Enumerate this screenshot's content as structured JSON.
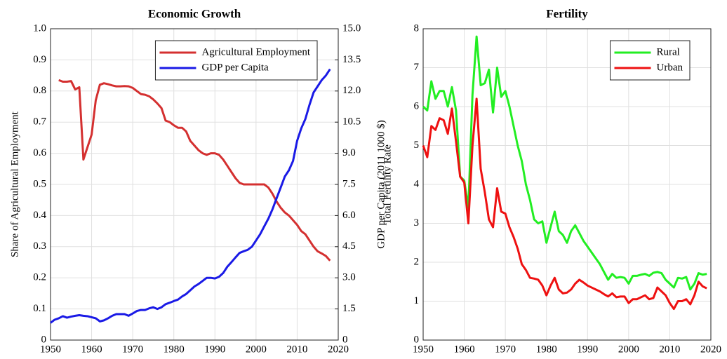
{
  "chart_data": [
    {
      "type": "line",
      "title": "Economic Growth",
      "ylabel": "Share of Agricultural Employment",
      "y2label": "GDP per Capita (2011 1000 $)",
      "x": [
        1950,
        1951,
        1952,
        1953,
        1954,
        1955,
        1956,
        1957,
        1958,
        1959,
        1960,
        1961,
        1962,
        1963,
        1964,
        1965,
        1966,
        1967,
        1968,
        1969,
        1970,
        1971,
        1972,
        1973,
        1974,
        1975,
        1976,
        1977,
        1978,
        1979,
        1980,
        1981,
        1982,
        1983,
        1984,
        1985,
        1986,
        1987,
        1988,
        1989,
        1990,
        1991,
        1992,
        1993,
        1994,
        1995,
        1996,
        1997,
        1998,
        1999,
        2000,
        2001,
        2002,
        2003,
        2004,
        2005,
        2006,
        2007,
        2008,
        2009,
        2010,
        2011,
        2012,
        2013,
        2014,
        2015,
        2016,
        2017,
        2018
      ],
      "xlim": [
        1950,
        2020
      ],
      "xticks": [
        1950,
        1960,
        1970,
        1980,
        1990,
        2000,
        2010,
        2020
      ],
      "ylim": [
        0,
        1
      ],
      "yticks": [
        0,
        0.1,
        0.2,
        0.3,
        0.4,
        0.5,
        0.6,
        0.7,
        0.8,
        0.9,
        {
          "value": 1,
          "label": "1.0"
        }
      ],
      "y2lim": [
        0,
        15
      ],
      "y2ticks": [
        0,
        1.5,
        {
          "value": 3,
          "label": "3.0"
        },
        4.5,
        {
          "value": 6,
          "label": "6.0"
        },
        7.5,
        {
          "value": 9,
          "label": "9.0"
        },
        10.5,
        {
          "value": 12,
          "label": "12.0"
        },
        13.5,
        {
          "value": 15,
          "label": "15.0"
        }
      ],
      "grid": true,
      "legend": "northeast",
      "series": [
        {
          "name": "Agricultural Employment",
          "color": "#d43030",
          "values": [
            null,
            null,
            0.835,
            0.83,
            0.83,
            0.832,
            0.805,
            0.812,
            0.58,
            0.62,
            0.66,
            0.77,
            0.82,
            0.825,
            0.822,
            0.818,
            0.815,
            0.815,
            0.816,
            0.815,
            0.81,
            0.8,
            0.79,
            0.788,
            0.783,
            0.773,
            0.76,
            0.745,
            0.705,
            0.7,
            0.69,
            0.682,
            0.682,
            0.67,
            0.64,
            0.625,
            0.61,
            0.6,
            0.595,
            0.6,
            0.6,
            0.595,
            0.58,
            0.56,
            0.54,
            0.52,
            0.505,
            0.5,
            0.5,
            0.5,
            0.5,
            0.5,
            0.5,
            0.49,
            0.47,
            0.445,
            0.425,
            0.41,
            0.4,
            0.385,
            0.37,
            0.35,
            0.34,
            0.32,
            0.3,
            0.285,
            0.278,
            0.27,
            0.255
          ]
        },
        {
          "name": "GDP per Capita",
          "color": "#1a1ae6",
          "axis": "y2",
          "values": [
            0.83,
            0.98,
            1.05,
            1.15,
            1.08,
            1.13,
            1.17,
            1.2,
            1.17,
            1.15,
            1.1,
            1.05,
            0.9,
            0.95,
            1.05,
            1.17,
            1.25,
            1.25,
            1.25,
            1.17,
            1.28,
            1.4,
            1.45,
            1.45,
            1.53,
            1.58,
            1.5,
            1.58,
            1.73,
            1.8,
            1.88,
            1.95,
            2.1,
            2.22,
            2.4,
            2.58,
            2.7,
            2.85,
            3.0,
            3.0,
            2.97,
            3.05,
            3.23,
            3.53,
            3.75,
            3.98,
            4.2,
            4.28,
            4.35,
            4.5,
            4.8,
            5.1,
            5.48,
            5.85,
            6.3,
            6.83,
            7.35,
            7.88,
            8.18,
            8.63,
            9.6,
            10.2,
            10.65,
            11.33,
            11.93,
            12.23,
            12.53,
            12.75,
            13.05
          ]
        }
      ]
    },
    {
      "type": "line",
      "title": "Fertility",
      "ylabel": "Total Fertility Rate",
      "x": [
        1950,
        1951,
        1952,
        1953,
        1954,
        1955,
        1956,
        1957,
        1958,
        1959,
        1960,
        1961,
        1962,
        1963,
        1964,
        1965,
        1966,
        1967,
        1968,
        1969,
        1970,
        1971,
        1972,
        1973,
        1974,
        1975,
        1976,
        1977,
        1978,
        1979,
        1980,
        1981,
        1982,
        1983,
        1984,
        1985,
        1986,
        1987,
        1988,
        1989,
        1990,
        1991,
        1992,
        1993,
        1994,
        1995,
        1996,
        1997,
        1998,
        1999,
        2000,
        2001,
        2002,
        2003,
        2004,
        2005,
        2006,
        2007,
        2008,
        2009,
        2010,
        2011,
        2012,
        2013,
        2014,
        2015,
        2016,
        2017,
        2018,
        2019
      ],
      "xlim": [
        1950,
        2020
      ],
      "xticks": [
        1950,
        1960,
        1970,
        1980,
        1990,
        2000,
        2010,
        2020
      ],
      "ylim": [
        0,
        8
      ],
      "yticks": [
        0,
        1,
        2,
        3,
        4,
        5,
        6,
        7,
        8
      ],
      "grid": true,
      "legend": "northeast",
      "series": [
        {
          "name": "Rural",
          "color": "#22ee22",
          "values": [
            6.0,
            5.9,
            6.65,
            6.2,
            6.4,
            6.4,
            6.0,
            6.5,
            5.9,
            4.2,
            4.1,
            3.4,
            6.3,
            7.8,
            6.55,
            6.6,
            6.95,
            5.85,
            7.0,
            6.25,
            6.4,
            6.0,
            5.5,
            5.0,
            4.6,
            4.0,
            3.6,
            3.1,
            3.0,
            3.05,
            2.5,
            2.9,
            3.3,
            2.8,
            2.7,
            2.5,
            2.8,
            2.95,
            2.75,
            2.55,
            2.4,
            2.25,
            2.1,
            1.95,
            1.75,
            1.55,
            1.7,
            1.6,
            1.62,
            1.6,
            1.45,
            1.65,
            1.65,
            1.68,
            1.7,
            1.65,
            1.73,
            1.75,
            1.72,
            1.55,
            1.45,
            1.35,
            1.6,
            1.58,
            1.62,
            1.3,
            1.45,
            1.72,
            1.68,
            1.7
          ]
        },
        {
          "name": "Urban",
          "color": "#ee1111",
          "values": [
            5.0,
            4.7,
            5.5,
            5.4,
            5.7,
            5.65,
            5.3,
            5.95,
            5.1,
            4.2,
            4.05,
            3.0,
            5.0,
            6.2,
            4.4,
            3.8,
            3.1,
            2.9,
            3.9,
            3.3,
            3.25,
            2.9,
            2.65,
            2.35,
            1.95,
            1.8,
            1.6,
            1.58,
            1.55,
            1.4,
            1.15,
            1.4,
            1.6,
            1.3,
            1.2,
            1.22,
            1.3,
            1.45,
            1.55,
            1.48,
            1.4,
            1.35,
            1.3,
            1.25,
            1.18,
            1.12,
            1.2,
            1.1,
            1.12,
            1.12,
            0.95,
            1.05,
            1.05,
            1.1,
            1.15,
            1.05,
            1.08,
            1.35,
            1.25,
            1.15,
            0.95,
            0.8,
            1.0,
            1.0,
            1.05,
            0.92,
            1.15,
            1.5,
            1.38,
            1.33
          ]
        }
      ]
    }
  ]
}
